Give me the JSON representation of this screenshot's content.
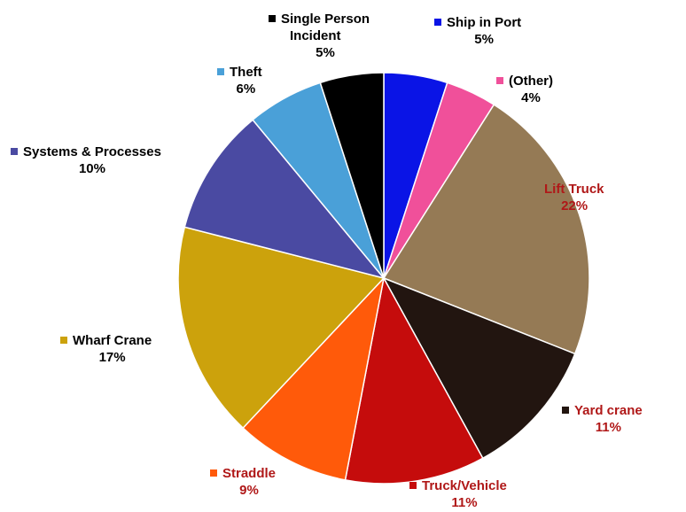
{
  "chart_data": {
    "type": "pie",
    "slices": [
      {
        "label": "Ship in Port",
        "value": 5,
        "pct_label": "5%",
        "color": "#0a14e6",
        "text_color": "#000000",
        "marker_color": "#0a14e6"
      },
      {
        "label": "(Other)",
        "value": 4,
        "pct_label": "4%",
        "color": "#f0509a",
        "text_color": "#000000",
        "marker_color": "#f0509a"
      },
      {
        "label": "Lift Truck",
        "value": 22,
        "pct_label": "22%",
        "color": "#957a55",
        "text_color": "#b01818",
        "marker_color": "#957a55"
      },
      {
        "label": "Yard crane",
        "value": 11,
        "pct_label": "11%",
        "color": "#221510",
        "text_color": "#b01818",
        "marker_color": "#221510"
      },
      {
        "label": "Truck/Vehicle",
        "value": 11,
        "pct_label": "11%",
        "color": "#c50c0c",
        "text_color": "#b01818",
        "marker_color": "#c50c0c"
      },
      {
        "label": "Straddle",
        "value": 9,
        "pct_label": "9%",
        "color": "#ff5a0a",
        "text_color": "#b01818",
        "marker_color": "#ff5a0a"
      },
      {
        "label": "Wharf Crane",
        "value": 17,
        "pct_label": "17%",
        "color": "#cca20c",
        "text_color": "#000000",
        "marker_color": "#cca20c"
      },
      {
        "label": "Systems & Processes",
        "value": 10,
        "pct_label": "10%",
        "color": "#4a4aa2",
        "text_color": "#000000",
        "marker_color": "#4a4aa2"
      },
      {
        "label": "Theft",
        "value": 6,
        "pct_label": "6%",
        "color": "#4aa0d8",
        "text_color": "#000000",
        "marker_color": "#4aa0d8"
      },
      {
        "label": "Single Person Incident",
        "value": 5,
        "pct_label": "5%",
        "color": "#000000",
        "text_color": "#000000",
        "marker_color": "#000000"
      }
    ]
  }
}
